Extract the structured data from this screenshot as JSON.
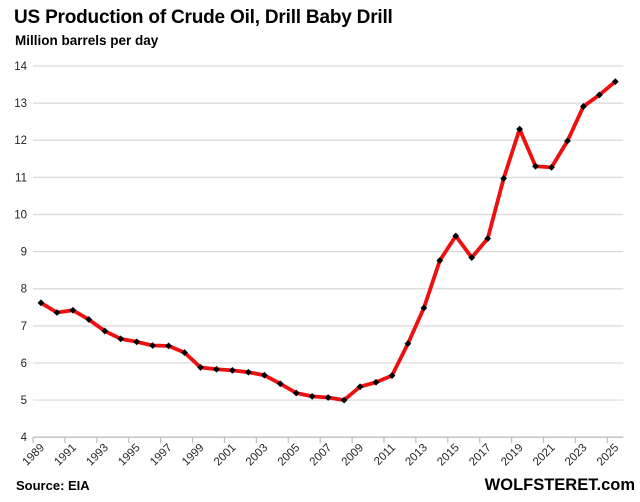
{
  "header": {
    "title": "US Production of Crude Oil, Drill Baby Drill",
    "subtitle": "Million barrels per day"
  },
  "footer": {
    "source": "Source: EIA",
    "watermark": "WOLFSTERET.com"
  },
  "chart_data": {
    "type": "line",
    "title": "US Production of Crude Oil, Drill Baby Drill",
    "ylabel": "Million barrels per day",
    "x": [
      1989,
      1990,
      1991,
      1992,
      1993,
      1994,
      1995,
      1996,
      1997,
      1998,
      1999,
      2000,
      2001,
      2002,
      2003,
      2004,
      2005,
      2006,
      2007,
      2008,
      2009,
      2010,
      2011,
      2012,
      2013,
      2014,
      2015,
      2016,
      2017,
      2018,
      2019,
      2020,
      2021,
      2022,
      2023,
      2024,
      2025
    ],
    "values": [
      7.62,
      7.36,
      7.42,
      7.17,
      6.86,
      6.65,
      6.57,
      6.47,
      6.46,
      6.28,
      5.88,
      5.83,
      5.8,
      5.75,
      5.67,
      5.44,
      5.19,
      5.1,
      5.07,
      5.0,
      5.36,
      5.48,
      5.66,
      6.52,
      7.48,
      8.76,
      9.42,
      8.84,
      9.35,
      10.97,
      12.3,
      11.3,
      11.27,
      11.98,
      12.91,
      13.22,
      13.58
    ],
    "ylim": [
      4,
      14
    ],
    "yticks": [
      4,
      5,
      6,
      7,
      8,
      9,
      10,
      11,
      12,
      13,
      14
    ],
    "xtick_labels": [
      "1989",
      "1991",
      "1993",
      "1995",
      "1997",
      "1999",
      "2001",
      "2003",
      "2005",
      "2007",
      "2009",
      "2011",
      "2013",
      "2015",
      "2017",
      "2019",
      "2021",
      "2023",
      "2025"
    ],
    "grid": true,
    "legend": false,
    "line_color": "#ee0f0f",
    "marker_color": "#000000",
    "marker_shape": "diamond",
    "gridline_color": "#d9d9d9",
    "axis_color": "#bfbfbf",
    "tick_text_color": "#262626"
  }
}
